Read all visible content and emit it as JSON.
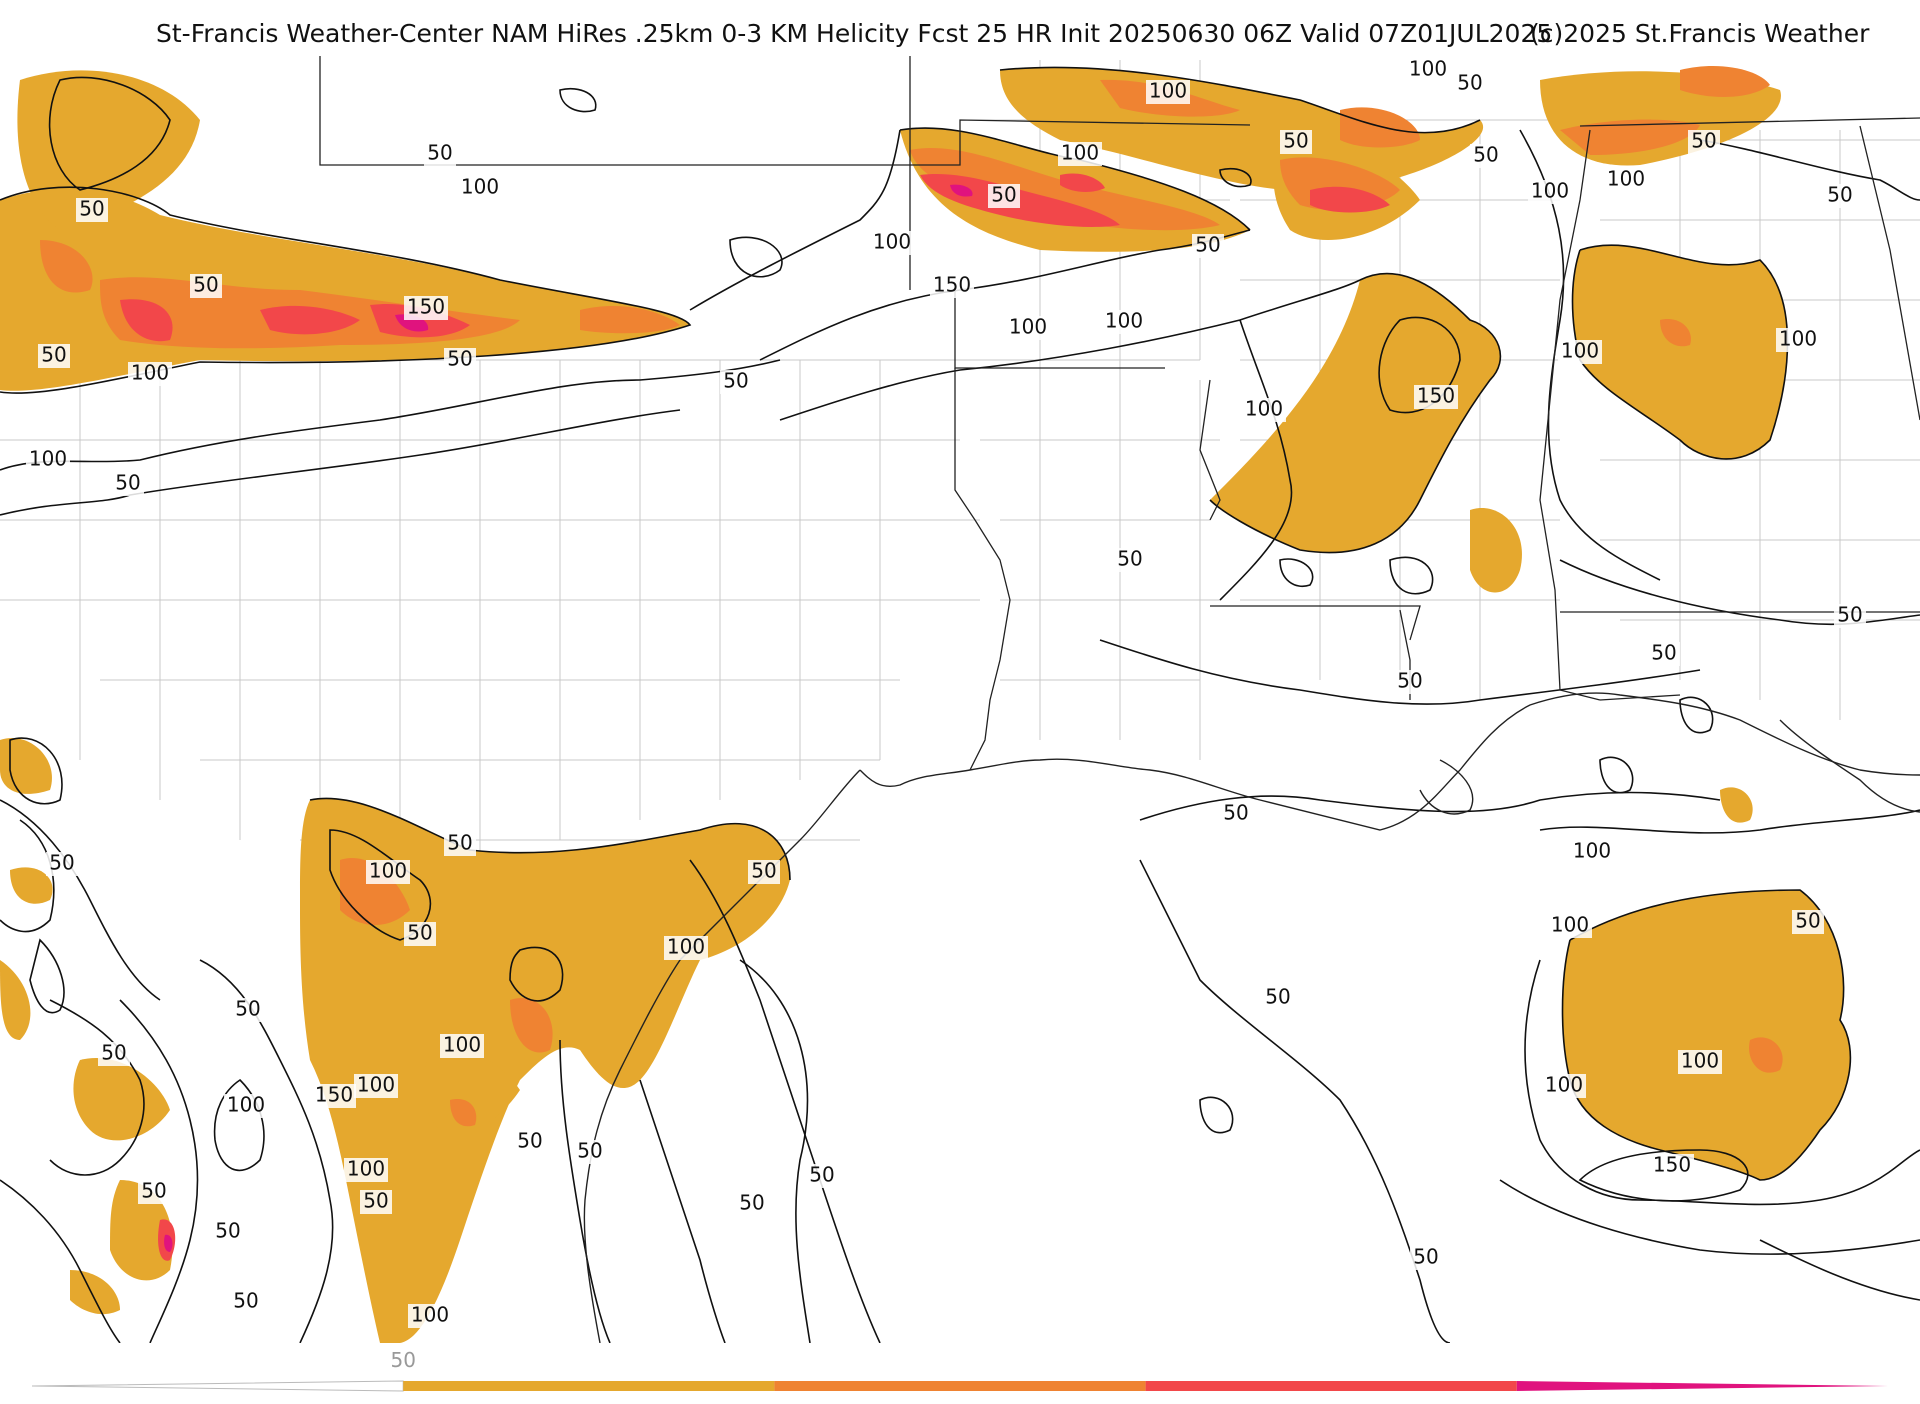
{
  "title": {
    "main": "St-Francis Weather-Center NAM HiRes .25km 0-3 KM Helicity Fcst 25 HR Init 20250630 06Z  Valid 07Z01JUL2025",
    "credit": "(c)2025 St.Francis Weather"
  },
  "colors": {
    "fill_50": "#e5a82e",
    "fill_100": "#ef8332",
    "fill_150": "#f2474a",
    "fill_200": "#e0137e",
    "contour": "#111111",
    "boundary": "#222222",
    "county": "#c8c8c8"
  },
  "contour_labels": [
    {
      "label": "50",
      "at": [
        440,
        154
      ]
    },
    {
      "label": "100",
      "at": [
        480,
        188
      ]
    },
    {
      "label": "50",
      "at": [
        92,
        210
      ]
    },
    {
      "label": "50",
      "at": [
        206,
        286
      ]
    },
    {
      "label": "150",
      "at": [
        426,
        308
      ]
    },
    {
      "label": "50",
      "at": [
        460,
        360
      ]
    },
    {
      "label": "50",
      "at": [
        54,
        356
      ]
    },
    {
      "label": "100",
      "at": [
        150,
        374
      ]
    },
    {
      "label": "100",
      "at": [
        48,
        460
      ]
    },
    {
      "label": "50",
      "at": [
        128,
        484
      ]
    },
    {
      "label": "50",
      "at": [
        736,
        382
      ]
    },
    {
      "label": "100",
      "at": [
        892,
        243
      ]
    },
    {
      "label": "150",
      "at": [
        952,
        286
      ]
    },
    {
      "label": "100",
      "at": [
        1028,
        328
      ]
    },
    {
      "label": "100",
      "at": [
        1124,
        322
      ]
    },
    {
      "label": "100",
      "at": [
        1080,
        154
      ]
    },
    {
      "label": "50",
      "at": [
        1004,
        196
      ]
    },
    {
      "label": "50",
      "at": [
        1208,
        246
      ]
    },
    {
      "label": "100",
      "at": [
        1168,
        92
      ]
    },
    {
      "label": "50",
      "at": [
        1296,
        142
      ]
    },
    {
      "label": "100",
      "at": [
        1428,
        70
      ]
    },
    {
      "label": "50",
      "at": [
        1470,
        84
      ]
    },
    {
      "label": "50",
      "at": [
        1486,
        156
      ]
    },
    {
      "label": "100",
      "at": [
        1550,
        192
      ]
    },
    {
      "label": "100",
      "at": [
        1626,
        180
      ]
    },
    {
      "label": "50",
      "at": [
        1704,
        142
      ]
    },
    {
      "label": "50",
      "at": [
        1840,
        196
      ]
    },
    {
      "label": "100",
      "at": [
        1580,
        352
      ]
    },
    {
      "label": "100",
      "at": [
        1798,
        340
      ]
    },
    {
      "label": "150",
      "at": [
        1436,
        397
      ]
    },
    {
      "label": "100",
      "at": [
        1264,
        410
      ]
    },
    {
      "label": "50",
      "at": [
        1130,
        560
      ]
    },
    {
      "label": "50",
      "at": [
        1850,
        616
      ]
    },
    {
      "label": "50",
      "at": [
        1664,
        654
      ]
    },
    {
      "label": "50",
      "at": [
        1410,
        682
      ]
    },
    {
      "label": "50",
      "at": [
        1236,
        814
      ]
    },
    {
      "label": "100",
      "at": [
        1592,
        852
      ]
    },
    {
      "label": "100",
      "at": [
        1570,
        926
      ]
    },
    {
      "label": "50",
      "at": [
        1808,
        922
      ]
    },
    {
      "label": "50",
      "at": [
        1278,
        998
      ]
    },
    {
      "label": "100",
      "at": [
        1700,
        1062
      ]
    },
    {
      "label": "100",
      "at": [
        1564,
        1086
      ]
    },
    {
      "label": "150",
      "at": [
        1672,
        1166
      ]
    },
    {
      "label": "50",
      "at": [
        1426,
        1258
      ]
    },
    {
      "label": "50",
      "at": [
        822,
        1176
      ]
    },
    {
      "label": "50",
      "at": [
        752,
        1204
      ]
    },
    {
      "label": "50",
      "at": [
        590,
        1152
      ]
    },
    {
      "label": "50",
      "at": [
        530,
        1142
      ]
    },
    {
      "label": "50",
      "at": [
        764,
        872
      ]
    },
    {
      "label": "100",
      "at": [
        686,
        948
      ]
    },
    {
      "label": "50",
      "at": [
        460,
        844
      ]
    },
    {
      "label": "100",
      "at": [
        388,
        872
      ]
    },
    {
      "label": "50",
      "at": [
        420,
        934
      ]
    },
    {
      "label": "100",
      "at": [
        462,
        1046
      ]
    },
    {
      "label": "100",
      "at": [
        376,
        1086
      ]
    },
    {
      "label": "150",
      "at": [
        334,
        1096
      ]
    },
    {
      "label": "100",
      "at": [
        246,
        1106
      ]
    },
    {
      "label": "100",
      "at": [
        366,
        1170
      ]
    },
    {
      "label": "50",
      "at": [
        376,
        1202
      ]
    },
    {
      "label": "50",
      "at": [
        248,
        1010
      ]
    },
    {
      "label": "50",
      "at": [
        114,
        1054
      ]
    },
    {
      "label": "50",
      "at": [
        154,
        1192
      ]
    },
    {
      "label": "50",
      "at": [
        228,
        1232
      ]
    },
    {
      "label": "50",
      "at": [
        246,
        1302
      ]
    },
    {
      "label": "100",
      "at": [
        430,
        1316
      ]
    },
    {
      "label": "50",
      "at": [
        62,
        864
      ]
    }
  ],
  "colorbar": {
    "tick_label": "50",
    "bins": [
      {
        "from": 0,
        "to": 50,
        "color": "#ffffff"
      },
      {
        "from": 50,
        "to": 100,
        "color": "#e5a82e"
      },
      {
        "from": 100,
        "to": 150,
        "color": "#ef8332"
      },
      {
        "from": 150,
        "to": 200,
        "color": "#f2474a"
      },
      {
        "from": 200,
        "to": 250,
        "color": "#e0137e"
      }
    ]
  }
}
